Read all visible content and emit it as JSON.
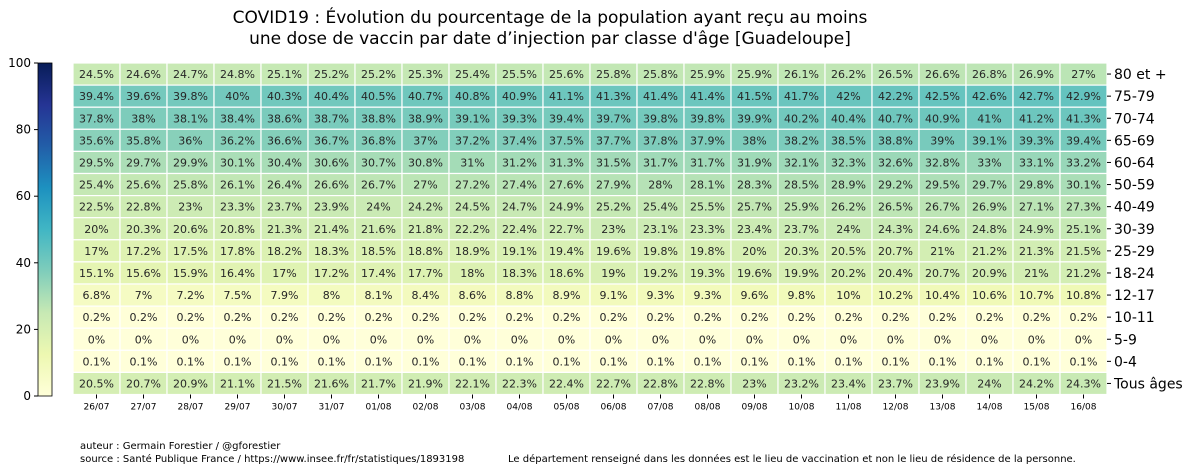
{
  "title": {
    "line1": "COVID19 : Évolution du pourcentage de la population ayant reçu au moins",
    "line2": "une dose de vaccin par date d’injection par classe d'âge [Guadeloupe]"
  },
  "footer": {
    "author": "auteur : Germain Forestier / @gforestier",
    "source": "source : Santé Publique France / https://www.insee.fr/fr/statistiques/1893198",
    "note": "Le département renseigné dans les données est le lieu de vaccination et non le lieu de résidence de la personne."
  },
  "colors": {
    "scale": [
      "#ffffd9",
      "#edf8b1",
      "#c7e9b4",
      "#7fcdbb",
      "#41b6c4",
      "#1d91c0",
      "#225ea8",
      "#253494",
      "#081d58"
    ],
    "cell_border": "#ffffff"
  },
  "chart_data": {
    "type": "heatmap",
    "title": "COVID19 : Évolution du pourcentage de la population ayant reçu au moins une dose de vaccin par date d’injection par classe d'âge [Guadeloupe]",
    "x": [
      "26/07",
      "27/07",
      "28/07",
      "29/07",
      "30/07",
      "31/07",
      "01/08",
      "02/08",
      "03/08",
      "04/08",
      "05/08",
      "06/08",
      "07/08",
      "08/08",
      "09/08",
      "10/08",
      "11/08",
      "12/08",
      "13/08",
      "14/08",
      "15/08",
      "16/08"
    ],
    "y": [
      "80 et +",
      "75-79",
      "70-74",
      "65-69",
      "60-64",
      "50-59",
      "40-49",
      "30-39",
      "25-29",
      "18-24",
      "12-17",
      "10-11",
      "5-9",
      "0-4",
      "Tous âges"
    ],
    "colorbar": {
      "range": [
        0,
        100
      ],
      "ticks": [
        0,
        20,
        40,
        60,
        80,
        100
      ]
    },
    "labels": [
      [
        "24.5%",
        "24.6%",
        "24.7%",
        "24.8%",
        "25.1%",
        "25.2%",
        "25.2%",
        "25.3%",
        "25.4%",
        "25.5%",
        "25.6%",
        "25.8%",
        "25.8%",
        "25.9%",
        "25.9%",
        "26.1%",
        "26.2%",
        "26.5%",
        "26.6%",
        "26.8%",
        "26.9%",
        "27%"
      ],
      [
        "39.4%",
        "39.6%",
        "39.8%",
        "40%",
        "40.3%",
        "40.4%",
        "40.5%",
        "40.7%",
        "40.8%",
        "40.9%",
        "41.1%",
        "41.3%",
        "41.4%",
        "41.4%",
        "41.5%",
        "41.7%",
        "42%",
        "42.2%",
        "42.5%",
        "42.6%",
        "42.7%",
        "42.9%"
      ],
      [
        "37.8%",
        "38%",
        "38.1%",
        "38.4%",
        "38.6%",
        "38.7%",
        "38.8%",
        "38.9%",
        "39.1%",
        "39.3%",
        "39.4%",
        "39.7%",
        "39.8%",
        "39.8%",
        "39.9%",
        "40.2%",
        "40.4%",
        "40.7%",
        "40.9%",
        "41%",
        "41.2%",
        "41.3%"
      ],
      [
        "35.6%",
        "35.8%",
        "36%",
        "36.2%",
        "36.6%",
        "36.7%",
        "36.8%",
        "37%",
        "37.2%",
        "37.4%",
        "37.5%",
        "37.7%",
        "37.8%",
        "37.9%",
        "38%",
        "38.2%",
        "38.5%",
        "38.8%",
        "39%",
        "39.1%",
        "39.3%",
        "39.4%"
      ],
      [
        "29.5%",
        "29.7%",
        "29.9%",
        "30.1%",
        "30.4%",
        "30.6%",
        "30.7%",
        "30.8%",
        "31%",
        "31.2%",
        "31.3%",
        "31.5%",
        "31.7%",
        "31.7%",
        "31.9%",
        "32.1%",
        "32.3%",
        "32.6%",
        "32.8%",
        "33%",
        "33.1%",
        "33.2%"
      ],
      [
        "25.4%",
        "25.6%",
        "25.8%",
        "26.1%",
        "26.4%",
        "26.6%",
        "26.7%",
        "27%",
        "27.2%",
        "27.4%",
        "27.6%",
        "27.9%",
        "28%",
        "28.1%",
        "28.3%",
        "28.5%",
        "28.9%",
        "29.2%",
        "29.5%",
        "29.7%",
        "29.8%",
        "30.1%"
      ],
      [
        "22.5%",
        "22.8%",
        "23%",
        "23.3%",
        "23.7%",
        "23.9%",
        "24%",
        "24.2%",
        "24.5%",
        "24.7%",
        "24.9%",
        "25.2%",
        "25.4%",
        "25.5%",
        "25.7%",
        "25.9%",
        "26.2%",
        "26.5%",
        "26.7%",
        "26.9%",
        "27.1%",
        "27.3%"
      ],
      [
        "20%",
        "20.3%",
        "20.6%",
        "20.8%",
        "21.3%",
        "21.4%",
        "21.6%",
        "21.8%",
        "22.2%",
        "22.4%",
        "22.7%",
        "23%",
        "23.1%",
        "23.3%",
        "23.4%",
        "23.7%",
        "24%",
        "24.3%",
        "24.6%",
        "24.8%",
        "24.9%",
        "25.1%"
      ],
      [
        "17%",
        "17.2%",
        "17.5%",
        "17.8%",
        "18.2%",
        "18.3%",
        "18.5%",
        "18.8%",
        "18.9%",
        "19.1%",
        "19.4%",
        "19.6%",
        "19.8%",
        "19.8%",
        "20%",
        "20.3%",
        "20.5%",
        "20.7%",
        "21%",
        "21.2%",
        "21.3%",
        "21.5%"
      ],
      [
        "15.1%",
        "15.6%",
        "15.9%",
        "16.4%",
        "17%",
        "17.2%",
        "17.4%",
        "17.7%",
        "18%",
        "18.3%",
        "18.6%",
        "19%",
        "19.2%",
        "19.3%",
        "19.6%",
        "19.9%",
        "20.2%",
        "20.4%",
        "20.7%",
        "20.9%",
        "21%",
        "21.2%"
      ],
      [
        "6.8%",
        "7%",
        "7.2%",
        "7.5%",
        "7.9%",
        "8%",
        "8.1%",
        "8.4%",
        "8.6%",
        "8.8%",
        "8.9%",
        "9.1%",
        "9.3%",
        "9.3%",
        "9.6%",
        "9.8%",
        "10%",
        "10.2%",
        "10.4%",
        "10.6%",
        "10.7%",
        "10.8%"
      ],
      [
        "0.2%",
        "0.2%",
        "0.2%",
        "0.2%",
        "0.2%",
        "0.2%",
        "0.2%",
        "0.2%",
        "0.2%",
        "0.2%",
        "0.2%",
        "0.2%",
        "0.2%",
        "0.2%",
        "0.2%",
        "0.2%",
        "0.2%",
        "0.2%",
        "0.2%",
        "0.2%",
        "0.2%",
        "0.2%"
      ],
      [
        "0%",
        "0%",
        "0%",
        "0%",
        "0%",
        "0%",
        "0%",
        "0%",
        "0%",
        "0%",
        "0%",
        "0%",
        "0%",
        "0%",
        "0%",
        "0%",
        "0%",
        "0%",
        "0%",
        "0%",
        "0%",
        "0%"
      ],
      [
        "0.1%",
        "0.1%",
        "0.1%",
        "0.1%",
        "0.1%",
        "0.1%",
        "0.1%",
        "0.1%",
        "0.1%",
        "0.1%",
        "0.1%",
        "0.1%",
        "0.1%",
        "0.1%",
        "0.1%",
        "0.1%",
        "0.1%",
        "0.1%",
        "0.1%",
        "0.1%",
        "0.1%",
        "0.1%"
      ],
      [
        "20.5%",
        "20.7%",
        "20.9%",
        "21.1%",
        "21.5%",
        "21.6%",
        "21.7%",
        "21.9%",
        "22.1%",
        "22.3%",
        "22.4%",
        "22.7%",
        "22.8%",
        "22.8%",
        "23%",
        "23.2%",
        "23.4%",
        "23.7%",
        "23.9%",
        "24%",
        "24.2%",
        "24.3%"
      ]
    ]
  }
}
